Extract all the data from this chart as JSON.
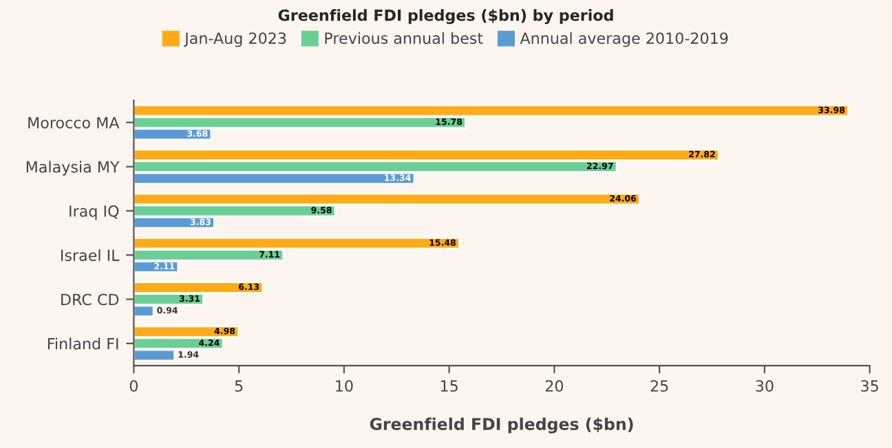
{
  "chart_data": {
    "type": "bar",
    "orientation": "horizontal",
    "legend_title": "Greenfield FDI pledges ($bn) by period",
    "xlabel": "Greenfield FDI pledges ($bn)",
    "categories": [
      "Morocco MA",
      "Malaysia MY",
      "Iraq IQ",
      "Israel IL",
      "DRC CD",
      "Finland FI"
    ],
    "series": [
      {
        "name": "Jan-Aug 2023",
        "color": "#ffaa17",
        "values": [
          33.98,
          27.82,
          24.06,
          15.48,
          6.13,
          4.98
        ]
      },
      {
        "name": "Previous annual best",
        "color": "#6bcf95",
        "values": [
          15.78,
          22.97,
          9.58,
          7.11,
          3.31,
          4.24
        ]
      },
      {
        "name": "Annual average 2010-2019",
        "color": "#5b9bd5",
        "values": [
          3.68,
          13.34,
          3.83,
          2.11,
          0.94,
          1.94
        ]
      }
    ],
    "xlim": [
      0,
      35
    ],
    "xticks": [
      0,
      5,
      10,
      15,
      20,
      25,
      30,
      35
    ],
    "grid": false,
    "legend": "top",
    "data_labels": true
  }
}
